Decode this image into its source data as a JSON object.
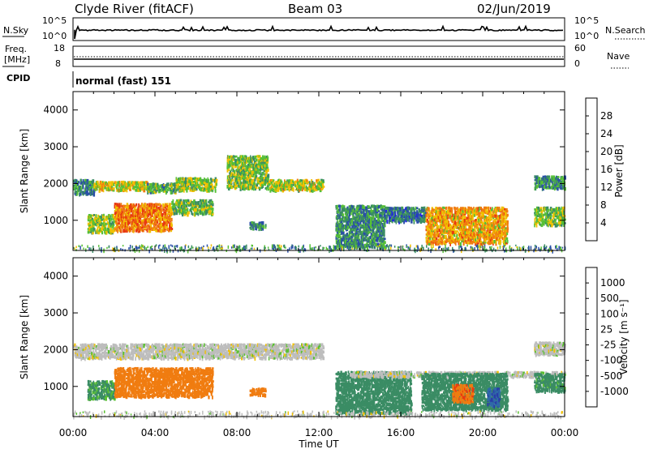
{
  "header": {
    "station": "Clyde River (fitACF)",
    "beam": "Beam 03",
    "date": "02/Jun/2019"
  },
  "noise_panel": {
    "left_label": "N.Sky",
    "right_label": "N.Search",
    "left_ticks": [
      "10^5",
      "10^0"
    ],
    "right_ticks": [
      "10^5",
      "10^0"
    ]
  },
  "freq_panel": {
    "left_label_1": "Freq.",
    "left_label_2": "[MHz]",
    "right_label": "Nave",
    "left_ticks": [
      "18",
      "8"
    ],
    "right_ticks": [
      "60",
      "0"
    ]
  },
  "cpid_panel": {
    "label": "CPID",
    "text": "normal (fast) 151"
  },
  "time_axis": {
    "label": "Time UT",
    "ticks": [
      "00:00",
      "04:00",
      "08:00",
      "12:00",
      "16:00",
      "20:00",
      "00:00"
    ]
  },
  "range_axis": {
    "label": "Slant Range [km]",
    "ticks": [
      1000,
      2000,
      3000,
      4000
    ]
  },
  "power_scale": {
    "label": "Power [dB]",
    "ticks": [
      "4",
      "8",
      "12",
      "16",
      "20",
      "24",
      "28"
    ],
    "colors": [
      "#2020e8",
      "#2a4fa8",
      "#3a8c64",
      "#56c036",
      "#f0c000",
      "#f07c10",
      "#e83a10",
      "#e81818"
    ]
  },
  "velocity_scale": {
    "label": "Velocity [m s⁻¹]",
    "ticks": [
      "1000",
      "500",
      "100",
      "25",
      "-25",
      "-100",
      "-500",
      "-1000"
    ],
    "colors": [
      "#2a3ca8",
      "#2f6aa8",
      "#3a8c64",
      "#5ac030",
      "#bdbdbd",
      "#f0c000",
      "#f07c10",
      "#e83a10",
      "#e81818"
    ]
  },
  "chart_data": [
    {
      "type": "heatmap",
      "title": "Power",
      "xlabel": "Time UT",
      "ylabel": "Slant Range [km]",
      "xlim": [
        "00:00",
        "24:00"
      ],
      "ylim": [
        180,
        4500
      ],
      "colorbar": {
        "label": "Power [dB]",
        "range": [
          0,
          30
        ]
      },
      "regions": [
        {
          "t": [
            0.0,
            1.0
          ],
          "r": [
            1750,
            2150
          ],
          "value": 10
        },
        {
          "t": [
            1.0,
            3.6
          ],
          "r": [
            1850,
            2100
          ],
          "value": 17
        },
        {
          "t": [
            3.6,
            5.0
          ],
          "r": [
            1800,
            2050
          ],
          "value": 12
        },
        {
          "t": [
            5.0,
            7.0
          ],
          "r": [
            1850,
            2200
          ],
          "value": 15
        },
        {
          "t": [
            7.5,
            9.5
          ],
          "r": [
            1900,
            2800
          ],
          "value": 14
        },
        {
          "t": [
            9.5,
            12.2
          ],
          "r": [
            1850,
            2150
          ],
          "value": 16
        },
        {
          "t": [
            0.7,
            2.0
          ],
          "r": [
            700,
            1200
          ],
          "value": 15
        },
        {
          "t": [
            2.0,
            4.8
          ],
          "r": [
            750,
            1500
          ],
          "value": 22
        },
        {
          "t": [
            4.8,
            6.8
          ],
          "r": [
            1200,
            1600
          ],
          "value": 13
        },
        {
          "t": [
            8.6,
            9.4
          ],
          "r": [
            800,
            1000
          ],
          "value": 10
        },
        {
          "t": [
            12.8,
            15.2
          ],
          "r": [
            300,
            1450
          ],
          "value": 10
        },
        {
          "t": [
            15.2,
            17.2
          ],
          "r": [
            1000,
            1400
          ],
          "value": 8
        },
        {
          "t": [
            17.2,
            21.2
          ],
          "r": [
            400,
            1400
          ],
          "value": 20
        },
        {
          "t": [
            22.5,
            24.0
          ],
          "r": [
            900,
            1400
          ],
          "value": 14
        },
        {
          "t": [
            22.5,
            24.0
          ],
          "r": [
            1900,
            2250
          ],
          "value": 10
        }
      ]
    },
    {
      "type": "heatmap",
      "title": "Velocity",
      "xlabel": "Time UT",
      "ylabel": "Slant Range [km]",
      "xlim": [
        "00:00",
        "24:00"
      ],
      "ylim": [
        180,
        4500
      ],
      "colorbar": {
        "label": "Velocity [m s⁻¹]",
        "range": [
          -1000,
          1000
        ]
      },
      "regions": [
        {
          "t": [
            0.0,
            12.2
          ],
          "r": [
            1800,
            2200
          ],
          "value": 0
        },
        {
          "t": [
            0.7,
            2.0
          ],
          "r": [
            700,
            1200
          ],
          "value": 120
        },
        {
          "t": [
            2.0,
            6.8
          ],
          "r": [
            750,
            1550
          ],
          "value": -350
        },
        {
          "t": [
            8.6,
            9.4
          ],
          "r": [
            800,
            1000
          ],
          "value": -300
        },
        {
          "t": [
            12.8,
            16.5
          ],
          "r": [
            300,
            1450
          ],
          "value": 200
        },
        {
          "t": [
            13.5,
            24.0
          ],
          "r": [
            1300,
            1450
          ],
          "value": 0
        },
        {
          "t": [
            17.0,
            21.2
          ],
          "r": [
            400,
            1400
          ],
          "value": 300
        },
        {
          "t": [
            18.5,
            19.5
          ],
          "r": [
            600,
            1100
          ],
          "value": -400
        },
        {
          "t": [
            20.2,
            20.8
          ],
          "r": [
            500,
            1000
          ],
          "value": 900
        },
        {
          "t": [
            22.5,
            24.0
          ],
          "r": [
            900,
            1400
          ],
          "value": 150
        },
        {
          "t": [
            22.5,
            24.0
          ],
          "r": [
            1900,
            2250
          ],
          "value": 0
        }
      ]
    }
  ]
}
